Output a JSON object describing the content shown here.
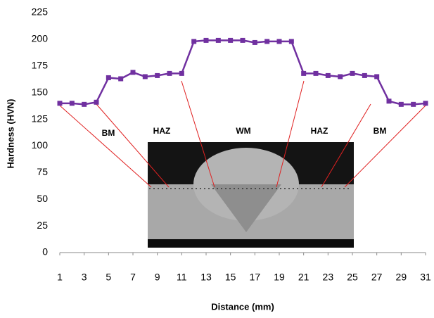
{
  "chart_data": {
    "type": "line",
    "x": [
      1,
      2,
      3,
      4,
      5,
      6,
      7,
      8,
      9,
      10,
      11,
      12,
      13,
      14,
      15,
      16,
      17,
      18,
      19,
      20,
      21,
      22,
      23,
      24,
      25,
      26,
      27,
      28,
      29,
      30,
      31
    ],
    "series": [
      {
        "color": "#7030a0",
        "values": [
          140,
          140,
          139,
          141,
          164,
          163,
          169,
          165,
          166,
          168,
          168,
          198,
          199,
          199,
          199,
          199,
          197,
          198,
          198,
          198,
          168,
          168,
          166,
          165,
          168,
          166,
          165,
          142,
          139,
          139,
          140
        ]
      }
    ],
    "xlim": [
      1,
      31
    ],
    "xticks": [
      1,
      3,
      5,
      7,
      9,
      11,
      13,
      15,
      17,
      19,
      21,
      23,
      25,
      27,
      29,
      31
    ],
    "ylim": [
      0,
      225
    ],
    "yticks": [
      0,
      25,
      50,
      75,
      100,
      125,
      150,
      175,
      200,
      225
    ],
    "xlabel": "Distance (mm)",
    "ylabel": "Hardness (HVN)",
    "annotations": [
      "BM",
      "HAZ",
      "WM",
      "HAZ",
      "BM"
    ]
  }
}
